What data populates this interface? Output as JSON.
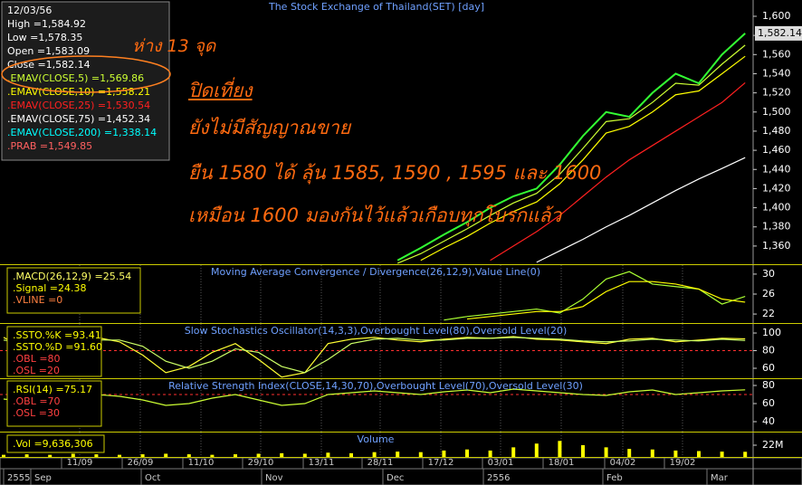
{
  "chart_data": [
    {
      "type": "line",
      "title": "The Stock Exchange of Thailand(SET) [day]",
      "ylim": [
        1341,
        1617
      ],
      "yticks": [
        {
          "value": 1360,
          "label": "1,360"
        },
        {
          "value": 1380,
          "label": "1,380"
        },
        {
          "value": 1400,
          "label": "1,400"
        },
        {
          "value": 1420,
          "label": "1,420"
        },
        {
          "value": 1440,
          "label": "1,440"
        },
        {
          "value": 1460,
          "label": "1,460"
        },
        {
          "value": 1480,
          "label": "1,480"
        },
        {
          "value": 1500,
          "label": "1,500"
        },
        {
          "value": 1520,
          "label": "1,520"
        },
        {
          "value": 1540,
          "label": "1,540"
        },
        {
          "value": 1560,
          "label": "1,560"
        },
        {
          "value": 1580,
          "label": "1,580"
        },
        {
          "value": 1600,
          "label": "1,600"
        }
      ],
      "last_price": {
        "value": 1582.14,
        "label": "1,582.14"
      },
      "legend": [
        "12/03/56",
        "High =1,584.92",
        "Low =1,578.35",
        "Open =1,583.09",
        "Close =1,582.14",
        ".EMAV(CLOSE,5) =1,569.86",
        ".EMAV(CLOSE,10) =1,558.21",
        ".EMAV(CLOSE,25) =1,530.54",
        ".EMAV(CLOSE,75) =1,452.34",
        ".EMAV(CLOSE,200) =1,338.14",
        ".PRAB =1,549.85"
      ],
      "legend_colors": [
        "#ffffff",
        "#ffffff",
        "#ffffff",
        "#ffffff",
        "#ffffff",
        "#ccff33",
        "#ffff00",
        "#ff2020",
        "#ffffff",
        "#00ffff",
        "#ff6060"
      ],
      "annotations": [
        "ห่าง 13 จุด",
        "ปิดเที่ยง",
        "ยังไม่มีสัญญาณขาย",
        "ยืน 1580 ได้ ลุ้น 1585, 1590 , 1595 และ 1600",
        "เหมือน 1600 มองกันไว้แล้วเกือบทุกโบรกแล้ว"
      ],
      "series": [
        {
          "name": "Close",
          "color": "#33ff33",
          "values": [
            null,
            null,
            null,
            null,
            null,
            null,
            null,
            null,
            null,
            null,
            null,
            null,
            null,
            null,
            null,
            null,
            null,
            1345,
            1358,
            1372,
            1385,
            1400,
            1412,
            1420,
            1445,
            1475,
            1500,
            1495,
            1520,
            1540,
            1530,
            1560,
            1582.14
          ]
        },
        {
          "name": "EMAV5",
          "color": "#ccff33",
          "values": [
            null,
            null,
            null,
            null,
            null,
            null,
            null,
            null,
            null,
            null,
            null,
            null,
            null,
            null,
            null,
            null,
            null,
            1342,
            1352,
            1365,
            1378,
            1392,
            1405,
            1415,
            1435,
            1462,
            1490,
            1493,
            1510,
            1530,
            1528,
            1550,
            1569.86
          ]
        },
        {
          "name": "EMAV10",
          "color": "#ffff00",
          "values": [
            null,
            null,
            null,
            null,
            null,
            null,
            null,
            null,
            null,
            null,
            null,
            null,
            null,
            null,
            null,
            null,
            null,
            null,
            1345,
            1358,
            1370,
            1384,
            1396,
            1406,
            1425,
            1450,
            1478,
            1485,
            1500,
            1518,
            1522,
            1540,
            1558.21
          ]
        },
        {
          "name": "EMAV25",
          "color": "#ff2020",
          "values": [
            null,
            null,
            null,
            null,
            null,
            null,
            null,
            null,
            null,
            null,
            null,
            null,
            null,
            null,
            null,
            null,
            null,
            null,
            null,
            null,
            null,
            1345,
            1360,
            1375,
            1392,
            1412,
            1432,
            1450,
            1465,
            1480,
            1495,
            1510,
            1530.54
          ]
        },
        {
          "name": "EMAV75",
          "color": "#ffffff",
          "values": [
            null,
            null,
            null,
            null,
            null,
            null,
            null,
            null,
            null,
            null,
            null,
            null,
            null,
            null,
            null,
            null,
            null,
            null,
            null,
            null,
            null,
            null,
            null,
            1343,
            1355,
            1367,
            1380,
            1392,
            1405,
            1418,
            1430,
            1441,
            1452.34
          ]
        }
      ]
    },
    {
      "type": "line",
      "title": "Moving Average Convergence / Divergence(26,12,9),Value Line(0)",
      "ylim": [
        20.2,
        31.8
      ],
      "yticks": [
        22,
        26,
        30
      ],
      "legend": [
        ".MACD(26,12,9) =25.54",
        ".Signal =24.38",
        ".VLINE =0"
      ],
      "legend_colors": [
        "#ffff66",
        "#ffff00",
        "#ff8040"
      ],
      "series": [
        {
          "name": "MACD",
          "color": "#aaff33",
          "values": [
            null,
            null,
            null,
            null,
            null,
            null,
            null,
            null,
            null,
            null,
            null,
            null,
            null,
            null,
            null,
            null,
            null,
            null,
            null,
            20.8,
            21.5,
            22,
            22.5,
            23,
            22.2,
            25,
            29,
            30.5,
            28,
            27.5,
            27,
            24,
            25.54
          ]
        },
        {
          "name": "Signal",
          "color": "#ffff00",
          "values": [
            null,
            null,
            null,
            null,
            null,
            null,
            null,
            null,
            null,
            null,
            null,
            null,
            null,
            null,
            null,
            null,
            null,
            null,
            null,
            null,
            21,
            21.5,
            22,
            22.5,
            22.5,
            23.5,
            26.5,
            28.5,
            28.5,
            28,
            27,
            25,
            24.38
          ]
        }
      ]
    },
    {
      "type": "line",
      "title": "Slow Stochastics Oscillator(14,3,3),Overbought Level(80),Oversold Level(20)",
      "ylim": [
        48.7,
        110.3
      ],
      "yticks": [
        60,
        80,
        100
      ],
      "reference_line": 80,
      "legend": [
        ".SSTO.%K =93.41",
        ".SSTO.%D =91.60",
        ".OBL =80",
        ".OSL =20"
      ],
      "legend_colors": [
        "#ffff00",
        "#ffff00",
        "#ff4040",
        "#ff4040"
      ],
      "series": [
        {
          "name": "%K",
          "color": "#ffff33",
          "values": [
            95,
            82,
            70,
            92,
            95,
            90,
            75,
            55,
            62,
            78,
            88,
            70,
            50,
            55,
            88,
            93,
            95,
            92,
            90,
            93,
            95,
            94,
            96,
            93,
            92,
            90,
            88,
            93,
            94,
            90,
            92,
            94,
            93.41
          ]
        },
        {
          "name": "%D",
          "color": "#ccff66",
          "values": [
            92,
            88,
            78,
            82,
            92,
            92,
            85,
            68,
            60,
            68,
            82,
            78,
            62,
            55,
            70,
            88,
            93,
            94,
            92,
            92,
            94,
            94,
            95,
            94,
            93,
            91,
            90,
            91,
            93,
            92,
            91,
            93,
            91.6
          ]
        }
      ]
    },
    {
      "type": "line",
      "title": "Relative Strength Index(CLOSE,14,30,70),Overbought Level(70),Oversold Level(30)",
      "ylim": [
        29,
        87
      ],
      "yticks": [
        40,
        60,
        80
      ],
      "reference_line": 70,
      "legend": [
        ".RSI(14) =75.17",
        ".OBL =70",
        ".OSL =30"
      ],
      "legend_colors": [
        "#ffff00",
        "#ff4040",
        "#ff4040"
      ],
      "series": [
        {
          "name": "RSI",
          "color": "#ccff33",
          "values": [
            65,
            62,
            58,
            66,
            70,
            68,
            64,
            58,
            60,
            66,
            70,
            64,
            58,
            60,
            70,
            72,
            74,
            72,
            70,
            73,
            75,
            72,
            76,
            74,
            72,
            70,
            69,
            73,
            75,
            70,
            72,
            74,
            75.17
          ]
        }
      ]
    },
    {
      "type": "bar",
      "title": "Volume",
      "ylim": [
        0,
        45700000
      ],
      "yticks": [
        {
          "value": 22000000,
          "label": "22M"
        }
      ],
      "legend": [
        ".Vol =9,636,306"
      ],
      "legend_colors": [
        "#ffff00"
      ],
      "series": [
        {
          "name": "Vol",
          "color": "#ffff00",
          "values": [
            4000000,
            5000000,
            4000000,
            6000000,
            5000000,
            4000000,
            5000000,
            6000000,
            5000000,
            4000000,
            5000000,
            6000000,
            7000000,
            6000000,
            8000000,
            7000000,
            9000000,
            10000000,
            9000000,
            12000000,
            14000000,
            12000000,
            18000000,
            25000000,
            30000000,
            22000000,
            18000000,
            15000000,
            14000000,
            12000000,
            11000000,
            10000000,
            9636306
          ]
        }
      ]
    },
    {
      "type": "axis",
      "date_labels": [
        "11/09",
        "26/09",
        "11/10",
        "29/10",
        "13/11",
        "28/11",
        "17/12",
        "03/01",
        "18/01",
        "04/02",
        "19/02"
      ],
      "period_labels": [
        "2555",
        "Sep",
        "Oct",
        "Nov",
        "Dec",
        "2556",
        "Feb",
        "Mar"
      ]
    }
  ]
}
